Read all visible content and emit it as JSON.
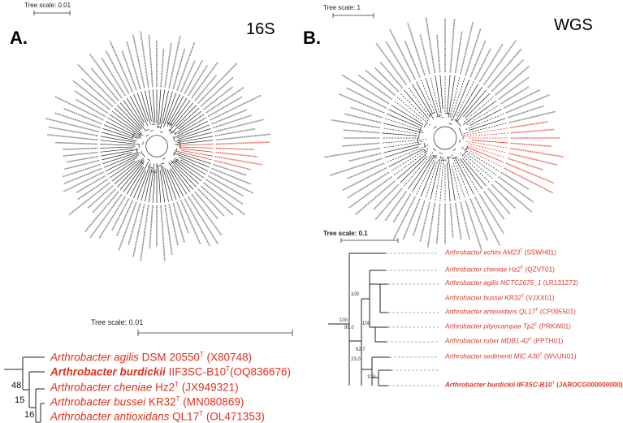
{
  "panel_a": {
    "letter": "A.",
    "method": "16S",
    "circular_scale_label": "Tree scale: 0.01",
    "sub_scale_label": "Tree scale: 0.01",
    "leaves": [
      {
        "genus": "Arthrobacter",
        "species": "agilis",
        "strain": "DSM 20550",
        "sup": "T",
        "acc": "(X80748)"
      },
      {
        "genus": "Arthrobacter",
        "species": "burdickii",
        "strain": "IIF3SC-B10",
        "sup": "T",
        "acc": "(OQ836676)"
      },
      {
        "genus": "Arthrobacter",
        "species": "cheniae",
        "strain": "Hz2",
        "sup": "T",
        "acc": "(JX949321)"
      },
      {
        "genus": "Arthrobacter",
        "species": "bussei",
        "strain": "KR32",
        "sup": "T",
        "acc": "(MN080869)"
      },
      {
        "genus": "Arthrobacter",
        "species": "antioxidans",
        "strain": " QL17",
        "sup": "T",
        "acc": "(OL471353)"
      }
    ],
    "bootstraps": [
      "48",
      "15",
      "16"
    ]
  },
  "panel_b": {
    "letter": "B.",
    "method": "WGS",
    "circular_scale_label": "Tree scale: 1",
    "sub_scale_label": "Tree scale: 0.1",
    "leaves": [
      {
        "text": "Arthrobacter echini AM23",
        "sup": "T",
        "acc": "(SSWH01)"
      },
      {
        "text": "Arthrobacter cheniae Hz2",
        "sup": "T",
        "acc": "(QZVT01)"
      },
      {
        "text": "Arthrobacter agilis NCTC2676_1",
        "sup": "",
        "acc": "(LR131272)"
      },
      {
        "text": "Arthrobacter bussei KR32",
        "sup": "T",
        "acc": "(VJXX01)"
      },
      {
        "text": "Arthrobacter antioxidans QL17",
        "sup": "T",
        "acc": "(CP095501)"
      },
      {
        "text": "Arthrobacter pityocampae Tp2",
        "sup": "T",
        "acc": "(PRKW01)"
      },
      {
        "text": "Arthrobacter ruber MDB1-42",
        "sup": "T",
        "acc": "(PPTH01)"
      },
      {
        "text": "Arthrobacter sedimenti MIC A30",
        "sup": "T",
        "acc": "(WVUN01)"
      },
      {
        "text": "Arthrobacter burdickii IIF3SC-B10",
        "sup": "T",
        "acc": "(JAROCG000000000)"
      }
    ],
    "bootstraps": [
      "100",
      "100",
      "99.0",
      "100",
      "62.7",
      "23.0",
      "100"
    ]
  },
  "colors": {
    "highlight": "#e0301e",
    "branch": "#222222"
  }
}
